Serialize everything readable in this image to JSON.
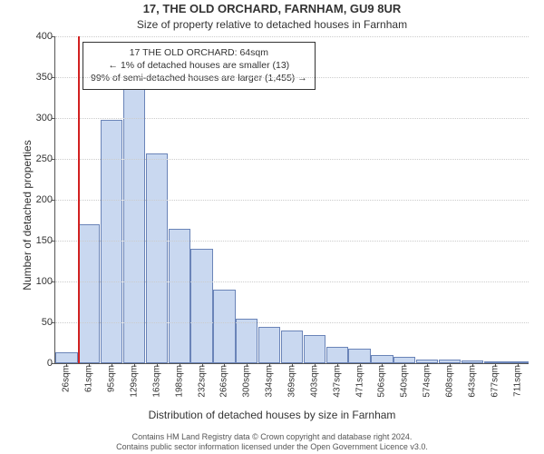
{
  "title": "17, THE OLD ORCHARD, FARNHAM, GU9 8UR",
  "subtitle": "Size of property relative to detached houses in Farnham",
  "ylabel": "Number of detached properties",
  "xlabel": "Distribution of detached houses by size in Farnham",
  "chart": {
    "type": "histogram",
    "ylim": [
      0,
      400
    ],
    "ytick_step": 50,
    "yticks": [
      0,
      50,
      100,
      150,
      200,
      250,
      300,
      350,
      400
    ],
    "categories": [
      "26sqm",
      "61sqm",
      "95sqm",
      "129sqm",
      "163sqm",
      "198sqm",
      "232sqm",
      "266sqm",
      "300sqm",
      "334sqm",
      "369sqm",
      "403sqm",
      "437sqm",
      "471sqm",
      "506sqm",
      "540sqm",
      "574sqm",
      "608sqm",
      "643sqm",
      "677sqm",
      "711sqm"
    ],
    "values": [
      13,
      170,
      298,
      338,
      257,
      165,
      140,
      90,
      55,
      45,
      40,
      35,
      20,
      18,
      10,
      8,
      5,
      4,
      3,
      2,
      1
    ],
    "bar_fill": "#c9d8f0",
    "bar_border": "#6a84b8",
    "background_color": "#ffffff",
    "grid_color": "#cccccc",
    "axis_color": "#555555",
    "tick_fontsize": 11,
    "marker": {
      "index_after_bar": 0,
      "color": "#d22020"
    }
  },
  "annotation": {
    "line1": "17 THE OLD ORCHARD: 64sqm",
    "line2": "← 1% of detached houses are smaller (13)",
    "line3": "99% of semi-detached houses are larger (1,455) →",
    "border_color": "#333333",
    "bg_color": "#ffffff",
    "fontsize": 10.5
  },
  "footer": {
    "line1": "Contains HM Land Registry data © Crown copyright and database right 2024.",
    "line2": "Contains public sector information licensed under the Open Government Licence v3.0."
  }
}
